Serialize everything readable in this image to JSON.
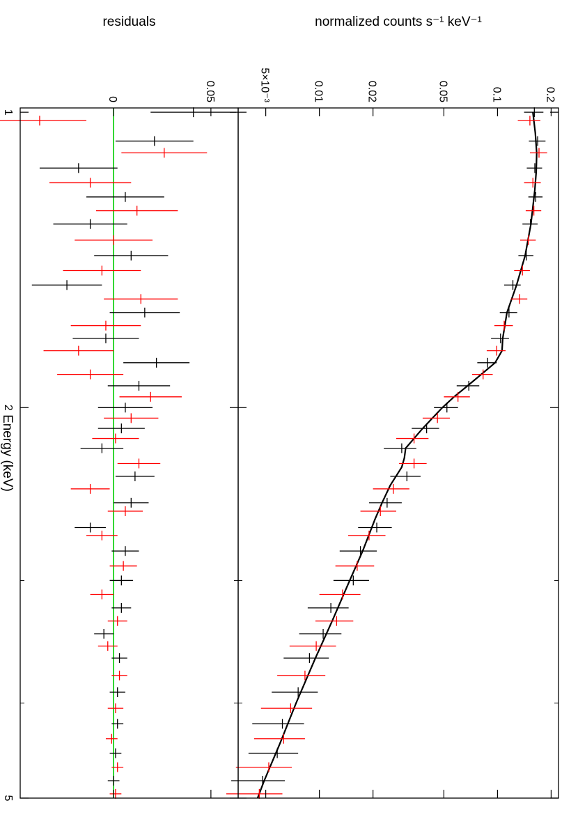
{
  "chart_data": [
    {
      "type": "scatter",
      "panel": "spectrum",
      "xlabel": "Energy (keV)",
      "ylabel": "normalized counts s⁻¹ keV⁻¹",
      "xscale": "log",
      "yscale": "log",
      "xlim": [
        0.99,
        5.0
      ],
      "ylim": [
        0.0035,
        0.22
      ],
      "x_ticks": [
        {
          "value": 1,
          "label": "1"
        },
        {
          "value": 2,
          "label": "2"
        },
        {
          "value": 5,
          "label": "5"
        }
      ],
      "y_ticks": [
        {
          "value": 0.2,
          "label": "0.2"
        },
        {
          "value": 0.1,
          "label": "0.1"
        },
        {
          "value": 0.05,
          "label": "0.05"
        },
        {
          "value": 0.02,
          "label": "0.02"
        },
        {
          "value": 0.01,
          "label": "0.01"
        },
        {
          "value": 0.005,
          "label": "5×10⁻³"
        }
      ],
      "grid": false,
      "model": {
        "color": "#000000",
        "x": [
          1.0,
          1.05,
          1.1,
          1.15,
          1.2,
          1.3,
          1.4,
          1.5,
          1.6,
          1.7,
          1.75,
          1.8,
          1.85,
          1.9,
          1.95,
          2.0,
          2.1,
          2.2,
          2.25,
          2.3,
          2.4,
          2.5,
          2.6,
          2.8,
          3.0,
          3.3,
          3.6,
          4.0,
          4.4,
          4.8,
          5.0
        ],
        "y": [
          0.158,
          0.163,
          0.166,
          0.165,
          0.162,
          0.154,
          0.143,
          0.128,
          0.113,
          0.107,
          0.106,
          0.097,
          0.081,
          0.068,
          0.057,
          0.049,
          0.038,
          0.0305,
          0.03,
          0.029,
          0.025,
          0.0225,
          0.0205,
          0.0175,
          0.0148,
          0.0118,
          0.0095,
          0.0074,
          0.006,
          0.0049,
          0.0045
        ]
      },
      "series": [
        {
          "color": "#000000",
          "x": [
            1.0,
            1.07,
            1.14,
            1.22,
            1.3,
            1.4,
            1.5,
            1.6,
            1.7,
            1.8,
            1.9,
            2.0,
            2.1,
            2.2,
            2.35,
            2.5,
            2.65,
            2.8,
            3.0,
            3.2,
            3.4,
            3.6,
            3.9,
            4.2,
            4.5,
            4.8
          ],
          "y": [
            0.161,
            0.168,
            0.162,
            0.164,
            0.153,
            0.145,
            0.122,
            0.116,
            0.104,
            0.088,
            0.069,
            0.052,
            0.04,
            0.029,
            0.031,
            0.024,
            0.021,
            0.017,
            0.0155,
            0.0116,
            0.0105,
            0.0088,
            0.0076,
            0.0062,
            0.0058,
            0.0048
          ],
          "yerr": [
            0.02,
            0.018,
            0.016,
            0.015,
            0.015,
            0.014,
            0.013,
            0.013,
            0.012,
            0.011,
            0.01,
            0.008,
            0.007,
            0.006,
            0.006,
            0.005,
            0.0045,
            0.004,
            0.0035,
            0.003,
            0.0028,
            0.0025,
            0.0022,
            0.002,
            0.0018,
            0.0016
          ]
        },
        {
          "color": "#ff0000",
          "x": [
            1.02,
            1.1,
            1.18,
            1.26,
            1.35,
            1.45,
            1.55,
            1.65,
            1.75,
            1.85,
            1.95,
            2.05,
            2.15,
            2.28,
            2.42,
            2.55,
            2.7,
            2.9,
            3.1,
            3.3,
            3.5,
            3.75,
            4.05,
            4.35,
            4.65,
            4.95
          ],
          "y": [
            0.152,
            0.171,
            0.158,
            0.16,
            0.149,
            0.138,
            0.133,
            0.109,
            0.099,
            0.083,
            0.06,
            0.046,
            0.034,
            0.034,
            0.026,
            0.022,
            0.019,
            0.0163,
            0.0135,
            0.0125,
            0.0096,
            0.0083,
            0.0069,
            0.0063,
            0.0052,
            0.0046
          ],
          "yerr": [
            0.022,
            0.019,
            0.017,
            0.016,
            0.015,
            0.014,
            0.014,
            0.013,
            0.012,
            0.011,
            0.01,
            0.008,
            0.007,
            0.006,
            0.006,
            0.005,
            0.0045,
            0.004,
            0.0035,
            0.003,
            0.0028,
            0.0025,
            0.0022,
            0.002,
            0.0018,
            0.0016
          ]
        }
      ]
    },
    {
      "type": "scatter",
      "panel": "residuals",
      "xlabel": "Energy (keV)",
      "ylabel": "residuals",
      "xscale": "log",
      "xlim": [
        0.99,
        5.0
      ],
      "ylim": [
        -0.048,
        0.064
      ],
      "y_ticks": [
        {
          "value": 0.05,
          "label": "0.05"
        },
        {
          "value": 0,
          "label": "0"
        }
      ],
      "zero_line_color": "#00cc00",
      "series": [
        {
          "color": "#000000",
          "x": [
            1.0,
            1.07,
            1.14,
            1.22,
            1.3,
            1.4,
            1.5,
            1.6,
            1.7,
            1.8,
            1.9,
            2.0,
            2.1,
            2.2,
            2.35,
            2.5,
            2.65,
            2.8,
            3.0,
            3.2,
            3.4,
            3.6,
            3.9,
            4.2,
            4.5,
            4.8
          ],
          "y": [
            0.041,
            0.021,
            -0.018,
            0.006,
            -0.012,
            0.009,
            -0.024,
            0.016,
            -0.004,
            0.022,
            0.013,
            0.006,
            0.004,
            -0.006,
            0.011,
            0.009,
            -0.012,
            0.006,
            0.004,
            0.004,
            -0.005,
            0.003,
            0.002,
            0.002,
            0.001,
            0.0
          ],
          "yerr": [
            0.022,
            0.02,
            0.02,
            0.02,
            0.019,
            0.019,
            0.018,
            0.018,
            0.017,
            0.017,
            0.016,
            0.014,
            0.012,
            0.011,
            0.01,
            0.009,
            0.008,
            0.007,
            0.006,
            0.005,
            0.005,
            0.004,
            0.004,
            0.003,
            0.003,
            0.003
          ]
        },
        {
          "color": "#ff0000",
          "x": [
            1.02,
            1.1,
            1.18,
            1.26,
            1.35,
            1.45,
            1.55,
            1.65,
            1.75,
            1.85,
            1.95,
            2.05,
            2.15,
            2.28,
            2.42,
            2.55,
            2.7,
            2.9,
            3.1,
            3.3,
            3.5,
            3.75,
            4.05,
            4.35,
            4.65,
            4.95
          ],
          "y": [
            -0.038,
            0.026,
            -0.012,
            0.012,
            0.0,
            -0.006,
            0.014,
            -0.004,
            -0.018,
            -0.012,
            0.019,
            0.009,
            0.001,
            0.013,
            -0.012,
            0.006,
            -0.006,
            0.005,
            -0.006,
            0.002,
            -0.003,
            0.003,
            0.001,
            -0.001,
            0.002,
            0.001
          ],
          "yerr": [
            0.024,
            0.022,
            0.021,
            0.021,
            0.02,
            0.02,
            0.019,
            0.018,
            0.018,
            0.017,
            0.016,
            0.014,
            0.012,
            0.011,
            0.01,
            0.009,
            0.008,
            0.007,
            0.006,
            0.005,
            0.005,
            0.004,
            0.004,
            0.003,
            0.003,
            0.003
          ]
        }
      ]
    }
  ]
}
